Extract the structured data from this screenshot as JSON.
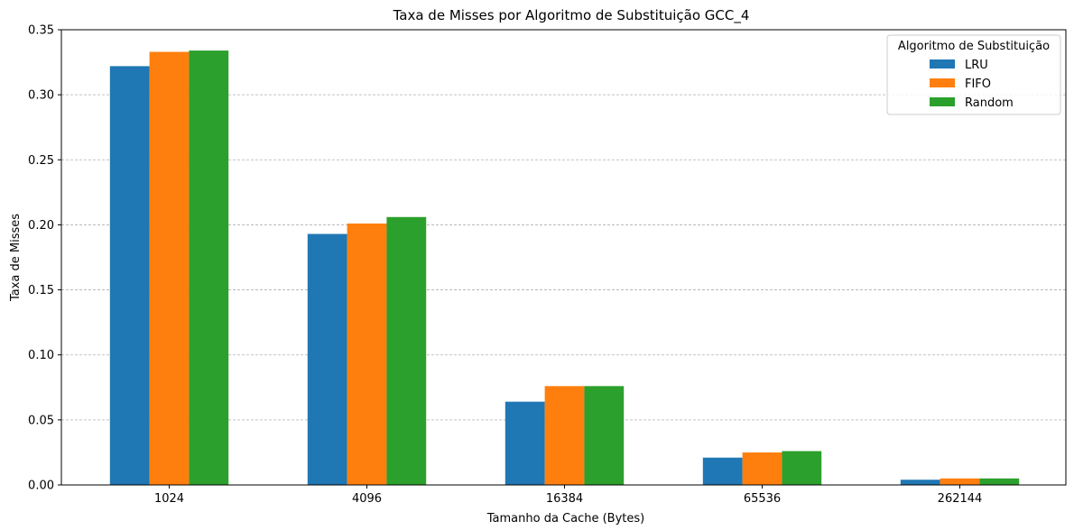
{
  "chart_data": {
    "type": "bar",
    "title": "Taxa de Misses por Algoritmo de Substituição GCC_4",
    "xlabel": "Tamanho da Cache (Bytes)",
    "ylabel": "Taxa de Misses",
    "categories": [
      "1024",
      "4096",
      "16384",
      "65536",
      "262144"
    ],
    "ylim": [
      0,
      0.35
    ],
    "yticks": [
      0.0,
      0.05,
      0.1,
      0.15,
      0.2,
      0.25,
      0.3,
      0.35
    ],
    "ytick_labels": [
      "0.00",
      "0.05",
      "0.10",
      "0.15",
      "0.20",
      "0.25",
      "0.30",
      "0.35"
    ],
    "grid": "y-dashed",
    "legend": {
      "title": "Algoritmo de Substituição",
      "placement": "top-right"
    },
    "series": [
      {
        "name": "LRU",
        "color": "#1f77b4",
        "values": [
          0.322,
          0.193,
          0.064,
          0.021,
          0.004
        ]
      },
      {
        "name": "FIFO",
        "color": "#ff7f0e",
        "values": [
          0.333,
          0.201,
          0.076,
          0.025,
          0.005
        ]
      },
      {
        "name": "Random",
        "color": "#2ca02c",
        "values": [
          0.334,
          0.206,
          0.076,
          0.026,
          0.005
        ]
      }
    ]
  }
}
